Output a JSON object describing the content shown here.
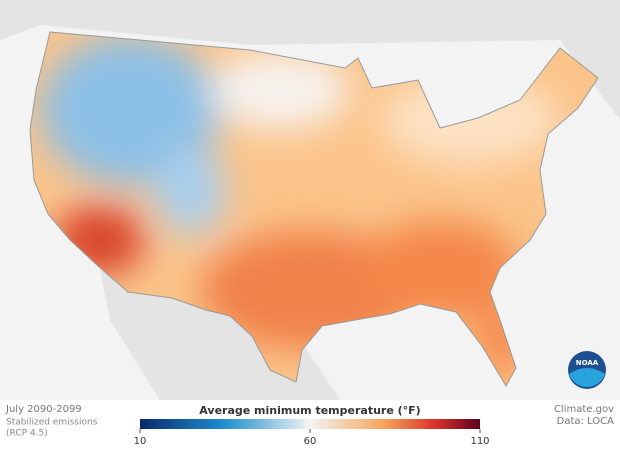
{
  "period": "July 2090-2099",
  "scenario": [
    "Stabilized emissions",
    "(RCP 4.5)"
  ],
  "legend": {
    "title": "Average minimum temperature (°F)",
    "ticks": [
      10,
      60,
      110
    ]
  },
  "credit": "Climate.gov",
  "source": "Data: LOCA",
  "logo": "NOAA"
}
